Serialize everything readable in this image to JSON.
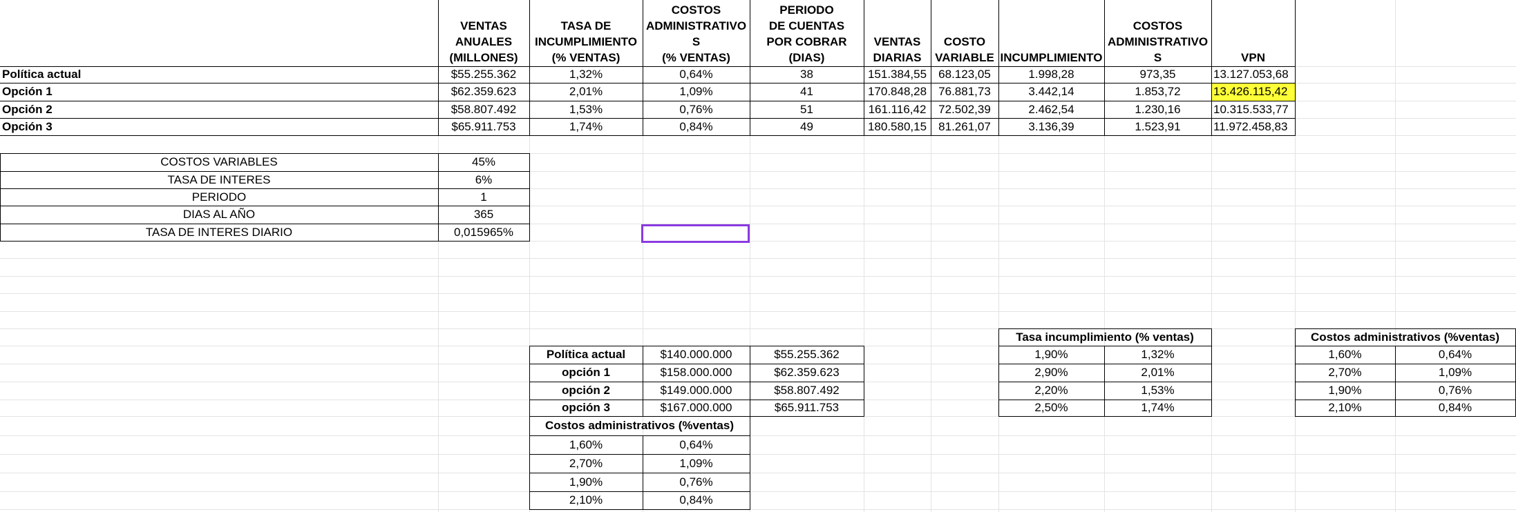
{
  "main_table": {
    "headers": [
      "VENTAS\nANUALES\n(MILLONES)",
      "TASA DE\nINCUMPLIMIENTO\n(% VENTAS)",
      "COSTOS\nADMINISTRATIVO\nS\n(% VENTAS)",
      "PERIODO\nDE CUENTAS\nPOR COBRAR\n(DIAS)",
      "VENTAS\nDIARIAS",
      "COSTO\nVARIABLE",
      "INCUMPLIMIENTO",
      "COSTOS\nADMINISTRATIVO\nS",
      "VPN"
    ],
    "rows": [
      {
        "label": "Política actual",
        "values": [
          "$55.255.362",
          "1,32%",
          "0,64%",
          "38",
          "151.384,55",
          "68.123,05",
          "1.998,28",
          "973,35",
          "13.127.053,68"
        ]
      },
      {
        "label": "Opción 1",
        "values": [
          "$62.359.623",
          "2,01%",
          "1,09%",
          "41",
          "170.848,28",
          "76.881,73",
          "3.442,14",
          "1.853,72",
          "13.426.115,42"
        ]
      },
      {
        "label": "Opción 2",
        "values": [
          "$58.807.492",
          "1,53%",
          "0,76%",
          "51",
          "161.116,42",
          "72.502,39",
          "2.462,54",
          "1.230,16",
          "10.315.533,77"
        ]
      },
      {
        "label": "Opción 3",
        "values": [
          "$65.911.753",
          "1,74%",
          "0,84%",
          "49",
          "180.580,15",
          "81.261,07",
          "3.136,39",
          "1.523,91",
          "11.972.458,83"
        ]
      }
    ],
    "highlight_color": "#ffff38"
  },
  "params": [
    {
      "label": "COSTOS VARIABLES",
      "value": "45%"
    },
    {
      "label": "TASA DE INTERES",
      "value": "6%"
    },
    {
      "label": "PERIODO",
      "value": "1"
    },
    {
      "label": "DIAS AL AÑO",
      "value": "365"
    },
    {
      "label": "TASA DE INTERES DIARIO",
      "value": "0,015965%"
    }
  ],
  "sales_table": [
    {
      "label": "Política actual",
      "v1": "$140.000.000",
      "v2": "$55.255.362"
    },
    {
      "label": "opción 1",
      "v1": "$158.000.000",
      "v2": "$62.359.623"
    },
    {
      "label": "opción 2",
      "v1": "$149.000.000",
      "v2": "$58.807.492"
    },
    {
      "label": "opción 3",
      "v1": "$167.000.000",
      "v2": "$65.911.753"
    }
  ],
  "tasa_table": {
    "title": "Tasa incumplimiento (% ventas)",
    "rows": [
      [
        "1,90%",
        "1,32%"
      ],
      [
        "2,90%",
        "2,01%"
      ],
      [
        "2,20%",
        "1,53%"
      ],
      [
        "2,50%",
        "1,74%"
      ]
    ]
  },
  "costos_table_right": {
    "title": "Costos administrativos (%ventas)",
    "rows": [
      [
        "1,60%",
        "0,64%"
      ],
      [
        "2,70%",
        "1,09%"
      ],
      [
        "1,90%",
        "0,76%"
      ],
      [
        "2,10%",
        "0,84%"
      ]
    ]
  },
  "costos_table_bottom": {
    "title": "Costos administrativos (%ventas)",
    "rows": [
      [
        "1,60%",
        "0,64%"
      ],
      [
        "2,70%",
        "1,09%"
      ],
      [
        "1,90%",
        "0,76%"
      ],
      [
        "2,10%",
        "0,84%"
      ]
    ]
  },
  "selection_color": "#8a3ae0"
}
